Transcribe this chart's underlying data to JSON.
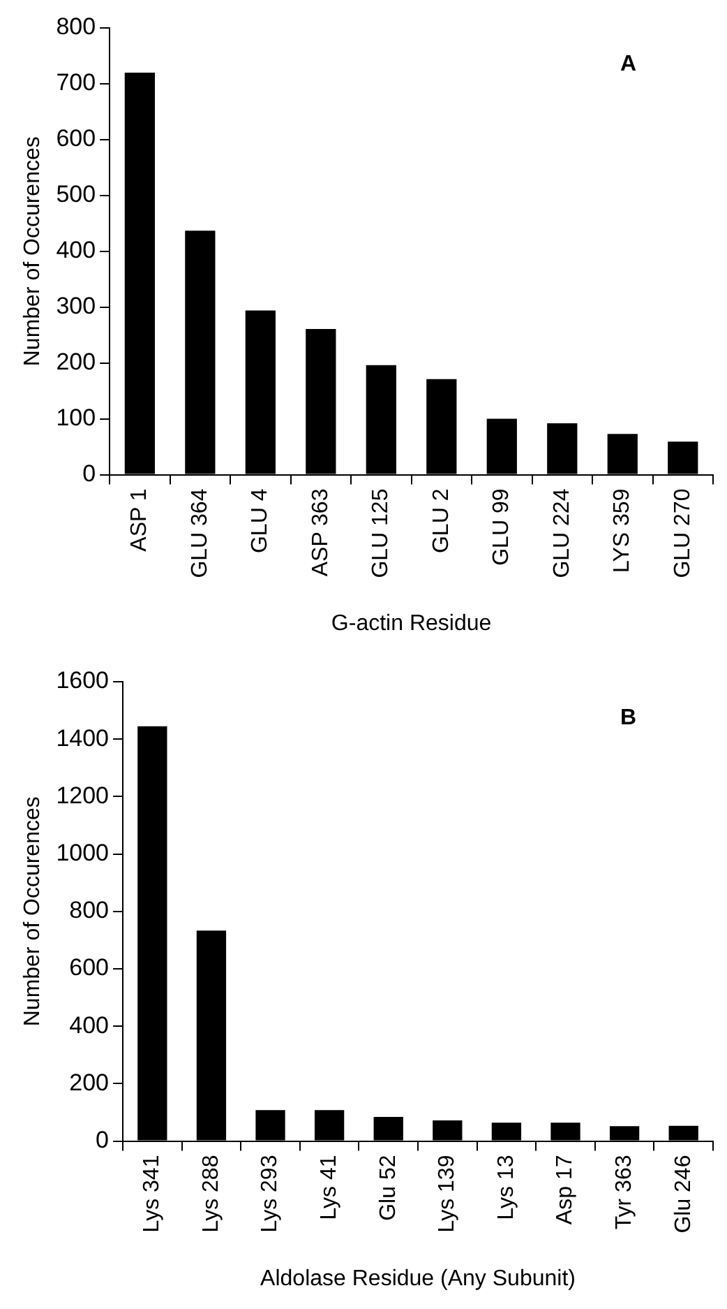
{
  "chart_data": [
    {
      "type": "bar",
      "annotations": [
        "A"
      ],
      "xlabel": "G-actin Residue",
      "ylabel": "Number of Occurences",
      "categories": [
        "ASP 1",
        "GLU 364",
        "GLU 4",
        "ASP 363",
        "GLU 125",
        "GLU 2",
        "GLU 99",
        "GLU 224",
        "LYS 359",
        "GLU 270"
      ],
      "values": [
        720,
        437,
        294,
        261,
        196,
        171,
        100,
        92,
        73,
        59
      ],
      "color": "#000000",
      "ylim": [
        0,
        800
      ],
      "yticks": [
        0,
        100,
        200,
        300,
        400,
        500,
        600,
        700,
        800
      ],
      "grid": false,
      "legend": false
    },
    {
      "type": "bar",
      "annotations": [
        "B"
      ],
      "xlabel": "Aldolase Residue (Any Subunit)",
      "ylabel": "Number of Occurences",
      "categories": [
        "Lys 341",
        "Lys 288",
        "Lys 293",
        "Lys 41",
        "Glu 52",
        "Lys 139",
        "Lys 13",
        "Asp 17",
        "Tyr 363",
        "Glu 246"
      ],
      "values": [
        1445,
        733,
        108,
        108,
        84,
        72,
        64,
        64,
        52,
        53
      ],
      "color": "#000000",
      "ylim": [
        0,
        1600
      ],
      "yticks": [
        0,
        200,
        400,
        600,
        800,
        1000,
        1200,
        1400,
        1600
      ],
      "grid": false,
      "legend": false
    }
  ]
}
